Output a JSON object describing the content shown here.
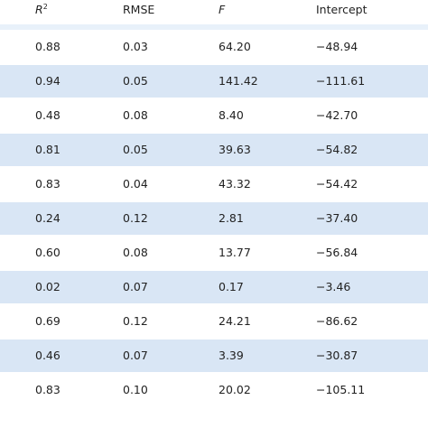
{
  "table": {
    "headers": {
      "r2_base": "R",
      "r2_sup": "2",
      "rmse": "RMSE",
      "f": "F",
      "intercept": "Intercept"
    },
    "rows": [
      {
        "r2": "0.88",
        "rmse": "0.03",
        "f": "64.20",
        "intercept": "−48.94"
      },
      {
        "r2": "0.94",
        "rmse": "0.05",
        "f": "141.42",
        "intercept": "−111.61"
      },
      {
        "r2": "0.48",
        "rmse": "0.08",
        "f": "8.40",
        "intercept": "−42.70"
      },
      {
        "r2": "0.81",
        "rmse": "0.05",
        "f": "39.63",
        "intercept": "−54.82"
      },
      {
        "r2": "0.83",
        "rmse": "0.04",
        "f": "43.32",
        "intercept": "−54.42"
      },
      {
        "r2": "0.24",
        "rmse": "0.12",
        "f": "2.81",
        "intercept": "−37.40"
      },
      {
        "r2": "0.60",
        "rmse": "0.08",
        "f": "13.77",
        "intercept": "−56.84"
      },
      {
        "r2": "0.02",
        "rmse": "0.07",
        "f": "0.17",
        "intercept": "−3.46"
      },
      {
        "r2": "0.69",
        "rmse": "0.12",
        "f": "24.21",
        "intercept": "−86.62"
      },
      {
        "r2": "0.46",
        "rmse": "0.07",
        "f": "3.39",
        "intercept": "−30.87"
      },
      {
        "r2": "0.83",
        "rmse": "0.10",
        "f": "20.02",
        "intercept": "−105.11"
      }
    ],
    "colors": {
      "band": "#d9e6f5",
      "header_rule": "#e8f1fa",
      "text": "#222222"
    }
  }
}
